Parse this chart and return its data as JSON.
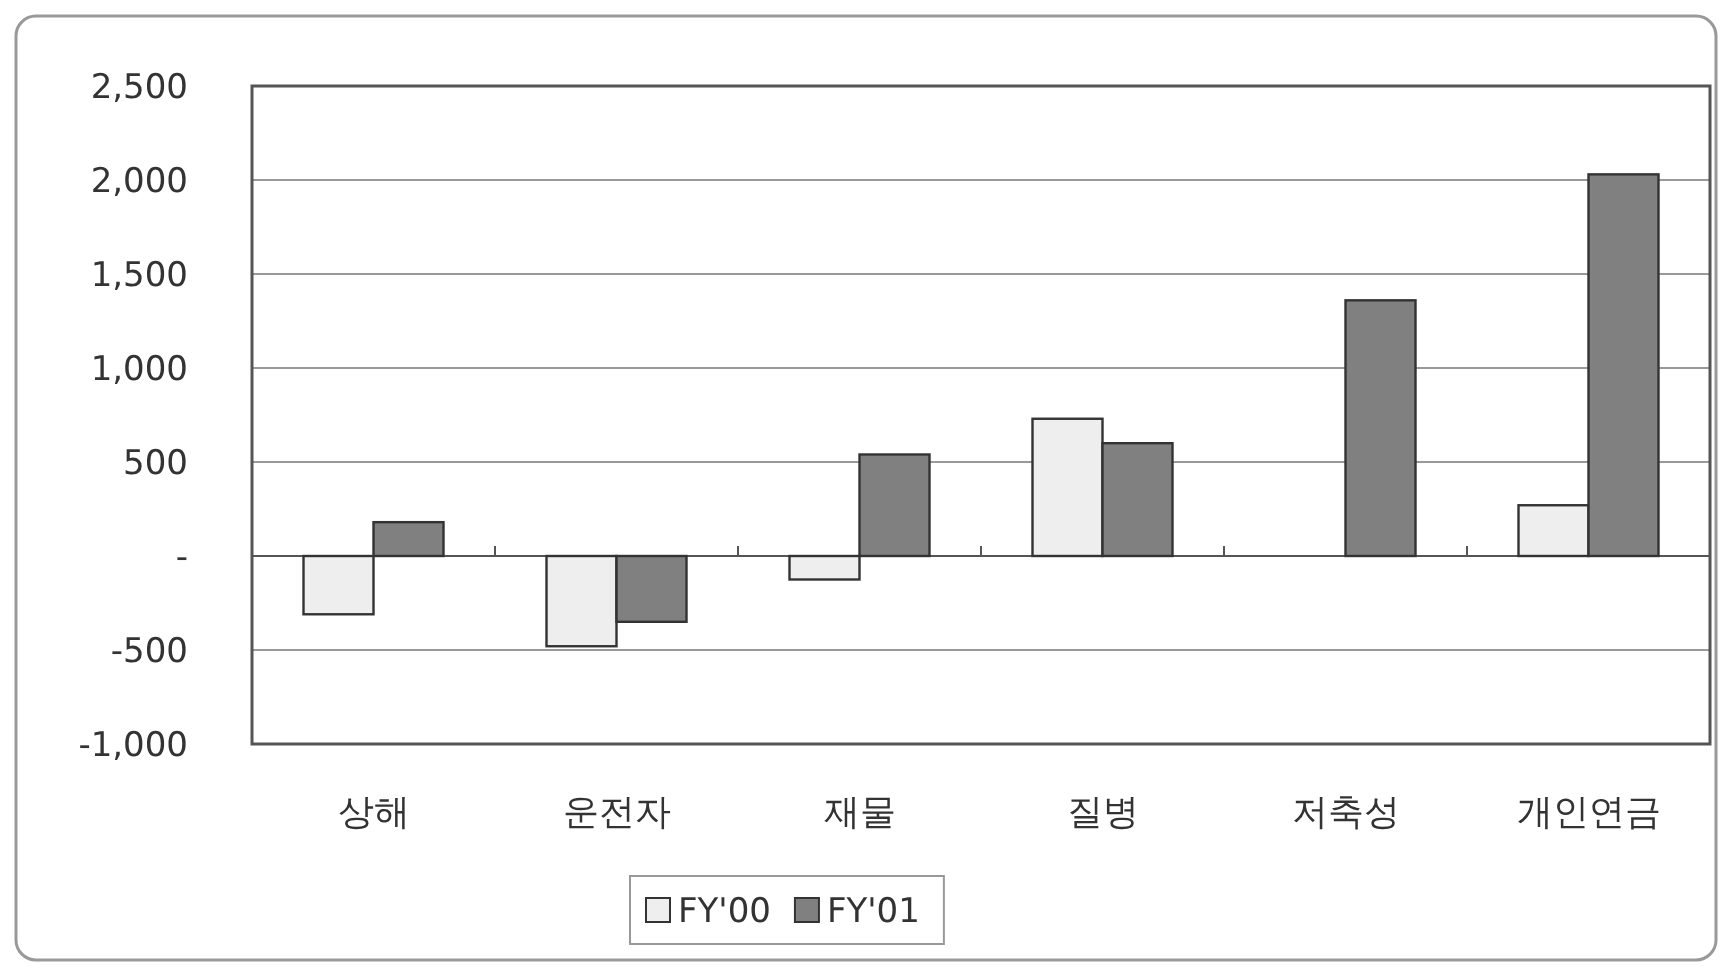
{
  "chart_data": {
    "type": "bar",
    "categories": [
      "상해",
      "운전자",
      "재물",
      "질병",
      "저축성",
      "개인연금"
    ],
    "series": [
      {
        "name": "FY'00",
        "color": "#eeeeee",
        "values": [
          -310,
          -480,
          -125,
          730,
          null,
          270
        ]
      },
      {
        "name": "FY'01",
        "color": "#808080",
        "values": [
          180,
          -350,
          540,
          600,
          1360,
          2030
        ]
      }
    ],
    "ylim": [
      -1000,
      2500
    ],
    "yticks": [
      {
        "value": -1000,
        "label": "-1,000"
      },
      {
        "value": -500,
        "label": "-500"
      },
      {
        "value": 0,
        "label": "-"
      },
      {
        "value": 500,
        "label": "500"
      },
      {
        "value": 1000,
        "label": "1,000"
      },
      {
        "value": 1500,
        "label": "1,500"
      },
      {
        "value": 2000,
        "label": "2,000"
      },
      {
        "value": 2500,
        "label": "2,500"
      }
    ],
    "grid": "y",
    "legend": "bottom"
  }
}
